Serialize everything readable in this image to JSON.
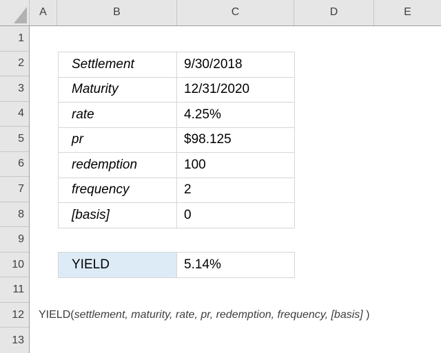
{
  "sheet": {
    "column_headers": [
      "A",
      "B",
      "C",
      "D",
      "E"
    ],
    "row_numbers": [
      "1",
      "2",
      "3",
      "4",
      "5",
      "6",
      "7",
      "8",
      "9",
      "10",
      "11",
      "12",
      "13"
    ]
  },
  "table": {
    "rows": [
      {
        "label": "Settlement",
        "value": "9/30/2018"
      },
      {
        "label": "Maturity",
        "value": "12/31/2020"
      },
      {
        "label": "rate",
        "value": "4.25%"
      },
      {
        "label": "pr",
        "value": "$98.125"
      },
      {
        "label": "redemption",
        "value": "100"
      },
      {
        "label": "frequency",
        "value": "2"
      },
      {
        "label": "[basis]",
        "value": "0"
      }
    ]
  },
  "result": {
    "label": "YIELD",
    "value": "5.14%"
  },
  "formula": {
    "prefix": "YIELD(",
    "args": "settlement, maturity, rate, pr, redemption, frequency, [basis]",
    "suffix": " )"
  },
  "colors": {
    "header_bg": "#e6e6e6",
    "header_text": "#3f3f3f",
    "header_border": "#9e9e9e",
    "header_separator": "#c6c6c6",
    "cell_border": "#d6d6d6",
    "cell_text": "#000000",
    "result_fill": "#ddebf7",
    "formula_text": "#3d3d3d",
    "triangle": "#b2b2b2"
  }
}
